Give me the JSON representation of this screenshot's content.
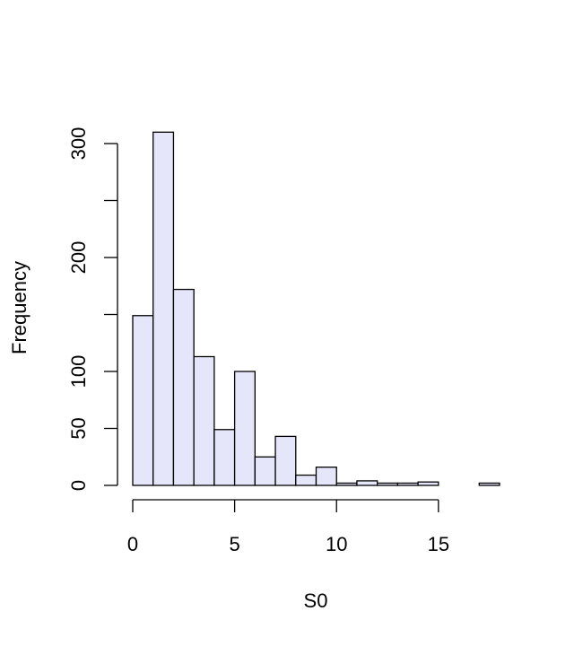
{
  "chart_data": {
    "type": "bar",
    "xlabel": "S0",
    "ylabel": "Frequency",
    "bar_color": "#e6e6fa",
    "xlim": [
      0,
      18
    ],
    "ylim": [
      0,
      300
    ],
    "x_ticks": [
      0,
      5,
      10,
      15
    ],
    "y_ticks": [
      0,
      50,
      100,
      150,
      200,
      250,
      300
    ],
    "y_tick_labels": [
      "0",
      "50",
      "100",
      "",
      "200",
      "",
      "300"
    ],
    "bins": [
      {
        "x0": 0,
        "x1": 1,
        "count": 149
      },
      {
        "x0": 1,
        "x1": 2,
        "count": 310
      },
      {
        "x0": 2,
        "x1": 3,
        "count": 172
      },
      {
        "x0": 3,
        "x1": 4,
        "count": 113
      },
      {
        "x0": 4,
        "x1": 5,
        "count": 49
      },
      {
        "x0": 5,
        "x1": 6,
        "count": 100
      },
      {
        "x0": 6,
        "x1": 7,
        "count": 25
      },
      {
        "x0": 7,
        "x1": 8,
        "count": 43
      },
      {
        "x0": 8,
        "x1": 9,
        "count": 9
      },
      {
        "x0": 9,
        "x1": 10,
        "count": 16
      },
      {
        "x0": 10,
        "x1": 11,
        "count": 2
      },
      {
        "x0": 11,
        "x1": 12,
        "count": 4
      },
      {
        "x0": 12,
        "x1": 13,
        "count": 2
      },
      {
        "x0": 13,
        "x1": 14,
        "count": 2
      },
      {
        "x0": 14,
        "x1": 15,
        "count": 3
      },
      {
        "x0": 15,
        "x1": 16,
        "count": 0
      },
      {
        "x0": 16,
        "x1": 17,
        "count": 0
      },
      {
        "x0": 17,
        "x1": 18,
        "count": 2
      }
    ]
  }
}
